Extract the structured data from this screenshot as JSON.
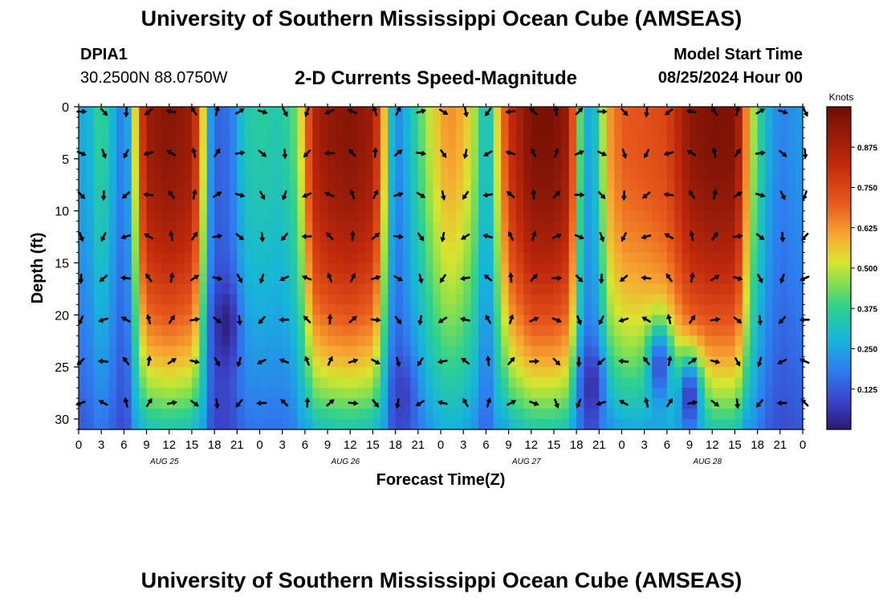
{
  "header": {
    "title": "University of Southern Mississippi Ocean Cube (AMSEAS)",
    "footer_title": "University of Southern Mississippi Ocean Cube (AMSEAS)",
    "station_id": "DPIA1",
    "station_coords": "30.2500N  88.0750W",
    "subtitle": "2-D Currents Speed-Magnitude",
    "start_label": "Model Start Time",
    "start_value": "08/25/2024 Hour 00"
  },
  "chart_data": {
    "type": "heatmap",
    "title": "2-D Currents Speed-Magnitude",
    "xlabel": "Forecast Time(Z)",
    "ylabel": "Depth (ft)",
    "x_hours_range": [
      0,
      96
    ],
    "x_tick_labels": [
      "0",
      "3",
      "6",
      "9",
      "12",
      "15",
      "18",
      "21",
      "0",
      "3",
      "6",
      "9",
      "12",
      "15",
      "18",
      "21",
      "0",
      "3",
      "6",
      "9",
      "12",
      "15",
      "18",
      "21",
      "0",
      "3",
      "6",
      "9",
      "12",
      "15",
      "18",
      "21",
      "0"
    ],
    "date_labels": [
      {
        "label": "AUG 25",
        "hour": 12
      },
      {
        "label": "AUG 26",
        "hour": 36
      },
      {
        "label": "AUG 27",
        "hour": 60
      },
      {
        "label": "AUG 28",
        "hour": 84
      }
    ],
    "ylim": [
      0,
      31
    ],
    "y_ticks": [
      0,
      5,
      10,
      15,
      20,
      25,
      30
    ],
    "colorbar": {
      "title": "Knots",
      "range": [
        0,
        1.0
      ],
      "ticks": [
        "0.125",
        "0.250",
        "0.375",
        "0.500",
        "0.625",
        "0.750",
        "0.875"
      ],
      "tick_values": [
        0.125,
        0.25,
        0.375,
        0.5,
        0.625,
        0.75,
        0.875
      ]
    },
    "surface_speed_knots_by_hour": [
      [
        0,
        0.25
      ],
      [
        1,
        0.2
      ],
      [
        2,
        0.3
      ],
      [
        3,
        0.35
      ],
      [
        4,
        0.28
      ],
      [
        5,
        0.2
      ],
      [
        6,
        0.12
      ],
      [
        7,
        0.3
      ],
      [
        8,
        0.7
      ],
      [
        9,
        0.9
      ],
      [
        12,
        0.95
      ],
      [
        15,
        0.9
      ],
      [
        16,
        0.7
      ],
      [
        17,
        0.3
      ],
      [
        18,
        0.1
      ],
      [
        20,
        0.12
      ],
      [
        21,
        0.2
      ],
      [
        22,
        0.3
      ],
      [
        24,
        0.32
      ],
      [
        27,
        0.3
      ],
      [
        29,
        0.4
      ],
      [
        30,
        0.6
      ],
      [
        31,
        0.85
      ],
      [
        33,
        0.92
      ],
      [
        36,
        0.95
      ],
      [
        39,
        0.9
      ],
      [
        40,
        0.7
      ],
      [
        41,
        0.35
      ],
      [
        42,
        0.15
      ],
      [
        43,
        0.2
      ],
      [
        45,
        0.35
      ],
      [
        47,
        0.5
      ],
      [
        49,
        0.6
      ],
      [
        51,
        0.55
      ],
      [
        53,
        0.4
      ],
      [
        54,
        0.2
      ],
      [
        55,
        0.4
      ],
      [
        57,
        0.8
      ],
      [
        60,
        0.97
      ],
      [
        63,
        0.97
      ],
      [
        65,
        0.9
      ],
      [
        66,
        0.55
      ],
      [
        67,
        0.2
      ],
      [
        69,
        0.3
      ],
      [
        70,
        0.6
      ],
      [
        72,
        0.7
      ],
      [
        75,
        0.72
      ],
      [
        78,
        0.75
      ],
      [
        81,
        0.93
      ],
      [
        84,
        0.97
      ],
      [
        87,
        0.96
      ],
      [
        88,
        0.8
      ],
      [
        89,
        0.5
      ],
      [
        91,
        0.25
      ],
      [
        93,
        0.15
      ],
      [
        96,
        0.2
      ]
    ],
    "low_speed_zones": [
      {
        "hour": 19.5,
        "depth_ft": 21,
        "speed_knots": 0.02
      },
      {
        "hour": 43,
        "depth_ft": 28,
        "speed_knots": 0.08
      },
      {
        "hour": 68,
        "depth_ft": 27,
        "speed_knots": 0.05
      },
      {
        "hour": 77,
        "depth_ft": 25,
        "speed_knots": 0.1
      },
      {
        "hour": 81,
        "depth_ft": 28,
        "speed_knots": 0.06
      }
    ],
    "vector_depths_ft": [
      0,
      4,
      8,
      12,
      16,
      20,
      24,
      28
    ],
    "vector_hours": [
      0,
      3,
      6,
      9,
      12,
      15,
      18,
      21,
      24,
      27,
      30,
      33,
      36,
      39,
      42,
      45,
      48,
      51,
      54,
      57,
      60,
      63,
      66,
      69,
      72,
      75,
      78,
      81,
      84,
      87,
      90,
      93,
      96
    ]
  }
}
